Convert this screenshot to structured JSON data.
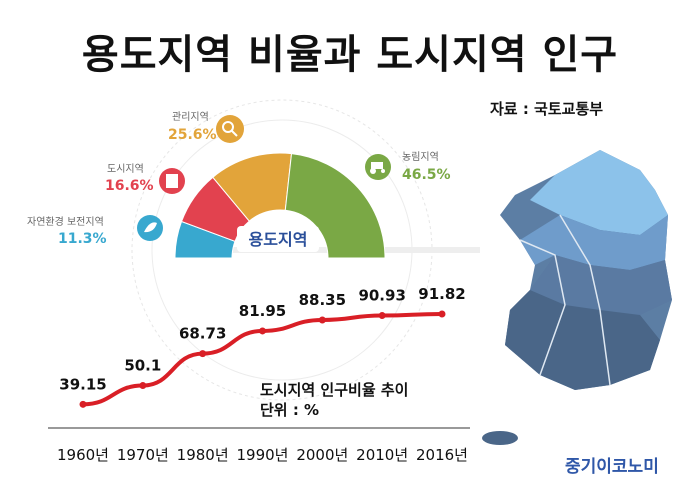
{
  "title": "용도지역 비율과 도시지역 인구",
  "source": "자료 : 국토교통부",
  "brand": "중기이코노미",
  "chart_data": [
    {
      "type": "pie",
      "title": "용도지역",
      "slices": [
        {
          "label": "자연환경 보전지역",
          "value": 11.3,
          "value_label": "11.3%",
          "color": "#38a8cf",
          "icon": "leaf-icon"
        },
        {
          "label": "도시지역",
          "value": 16.6,
          "value_label": "16.6%",
          "color": "#e2424f",
          "icon": "building-icon"
        },
        {
          "label": "관리지역",
          "value": 25.6,
          "value_label": "25.6%",
          "color": "#e2a43a",
          "icon": "search-icon"
        },
        {
          "label": "농림지역",
          "value": 46.5,
          "value_label": "46.5%",
          "color": "#7aa845",
          "icon": "tractor-icon"
        }
      ]
    },
    {
      "type": "line",
      "title": "도시지역 인구비율 추이",
      "unit_label": "단위 : %",
      "categories": [
        "1960년",
        "1970년",
        "1980년",
        "1990년",
        "2000년",
        "2010년",
        "2016년"
      ],
      "values": [
        39.15,
        50.1,
        68.73,
        81.95,
        88.35,
        90.93,
        91.82
      ],
      "value_labels": [
        "39.15",
        "50.1",
        "68.73",
        "81.95",
        "88.35",
        "90.93",
        "91.82"
      ],
      "ylim": [
        30,
        100
      ],
      "line_color": "#d91f26",
      "grid": false
    }
  ]
}
